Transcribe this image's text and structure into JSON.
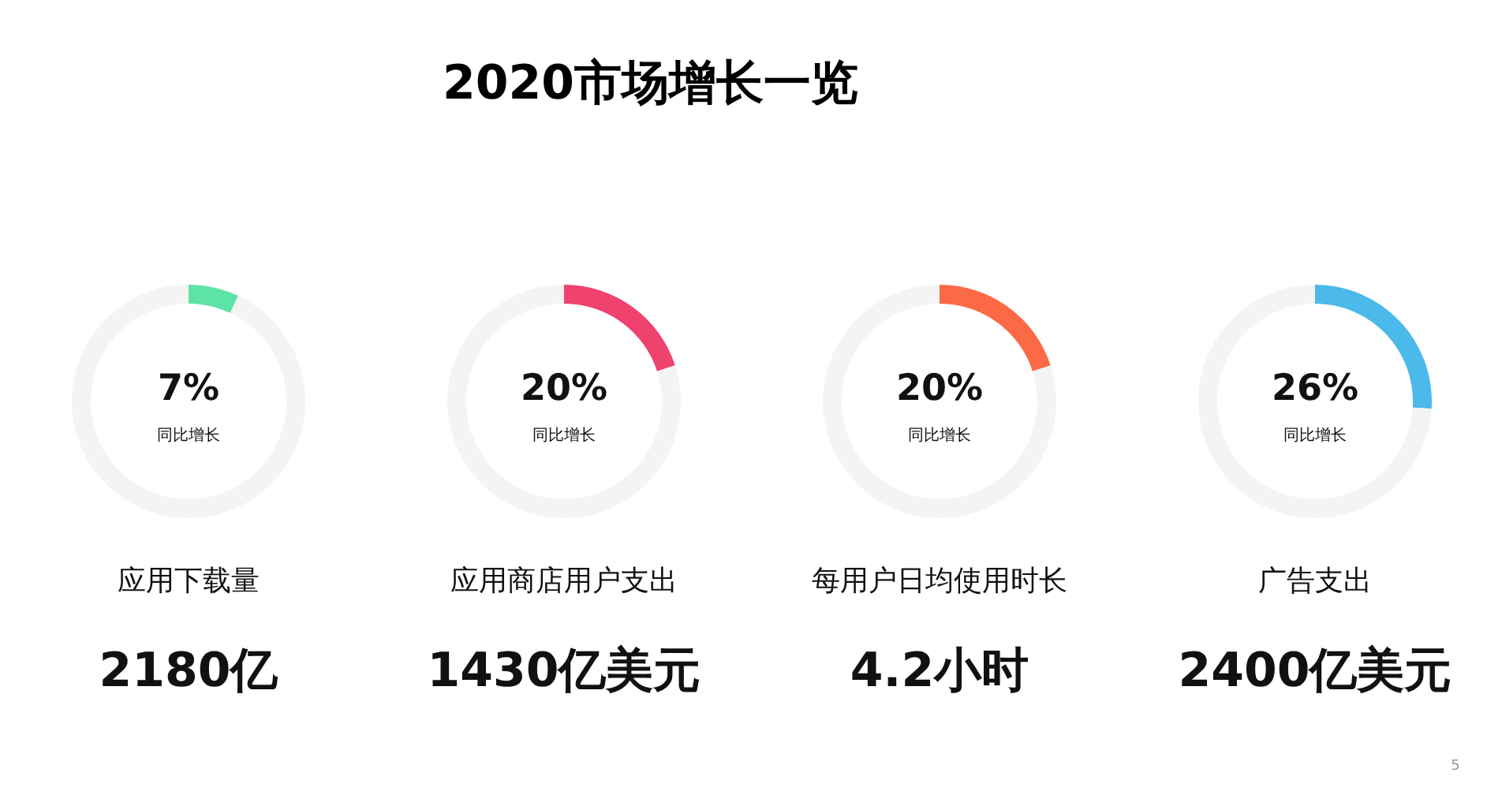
{
  "chart_data": [
    {
      "type": "other",
      "title": "2020市场增长一览"
    },
    {
      "type": "donut",
      "categories": [
        null,
        null
      ],
      "values": [
        7,
        93
      ],
      "colors": [
        "#5ee3a6",
        "#f4f4f4"
      ],
      "value_labels": [
        "7%",
        null
      ],
      "annotations": [
        "同比增长",
        "应用下载量",
        "2180亿"
      ]
    },
    {
      "type": "donut",
      "categories": [
        null,
        null
      ],
      "values": [
        20,
        80
      ],
      "colors": [
        "#f0426f",
        "#f4f4f4"
      ],
      "value_labels": [
        "20%",
        null
      ],
      "annotations": [
        "同比增长",
        "应用商店用户支出",
        "1430亿美元"
      ]
    },
    {
      "type": "donut",
      "categories": [
        null,
        null
      ],
      "values": [
        20,
        80
      ],
      "colors": [
        "#fc6945",
        "#f4f4f4"
      ],
      "value_labels": [
        "20%",
        null
      ],
      "annotations": [
        "同比增长",
        "每用户日均使用时长",
        "4.2小时"
      ]
    },
    {
      "type": "donut",
      "categories": [
        null,
        null
      ],
      "values": [
        26,
        74
      ],
      "colors": [
        "#4bb9e9",
        "#f4f4f4"
      ],
      "value_labels": [
        "26%",
        null
      ],
      "annotations": [
        "同比增长",
        "广告支出",
        "2400亿美元",
        "5"
      ]
    }
  ]
}
